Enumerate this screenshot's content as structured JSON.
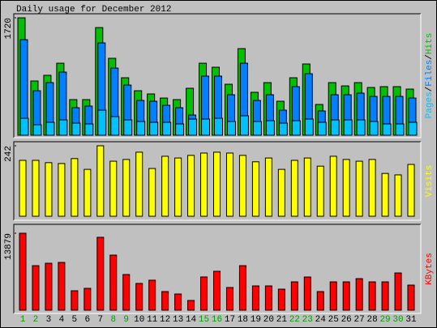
{
  "chart_data": [
    {
      "type": "bar",
      "title": "Daily usage for December 2012",
      "ylim": [
        0,
        1720
      ],
      "yticks": [
        1720
      ],
      "legend_separator": "/",
      "series": [
        {
          "name": "Hits",
          "color": "#00c000",
          "values": [
            1720,
            795,
            878,
            1055,
            522,
            522,
            1577,
            1127,
            842,
            652,
            605,
            545,
            522,
            688,
            1055,
            996,
            747,
            1269,
            629,
            771,
            498,
            842,
            1044,
            451,
            771,
            723,
            771,
            700,
            712,
            712,
            676
          ]
        },
        {
          "name": "Files",
          "color": "#0080ff",
          "values": [
            1400,
            652,
            771,
            925,
            403,
            427,
            1352,
            984,
            735,
            510,
            498,
            439,
            403,
            296,
            866,
            866,
            593,
            1055,
            510,
            593,
            368,
            712,
            901,
            356,
            593,
            593,
            617,
            569,
            569,
            569,
            545
          ]
        },
        {
          "name": "Pages",
          "color": "#00c0ff",
          "values": [
            249,
            154,
            190,
            225,
            178,
            166,
            368,
            273,
            225,
            202,
            190,
            190,
            166,
            237,
            237,
            249,
            202,
            285,
            202,
            213,
            178,
            213,
            237,
            190,
            225,
            225,
            225,
            202,
            166,
            166,
            190
          ]
        }
      ]
    },
    {
      "type": "bar",
      "ylim": [
        0,
        242
      ],
      "yticks": [
        242
      ],
      "series": [
        {
          "name": "Visits",
          "color": "#ffff00",
          "values": [
            192,
            192,
            184,
            181,
            198,
            161,
            242,
            189,
            195,
            220,
            164,
            206,
            200,
            209,
            217,
            220,
            217,
            209,
            187,
            200,
            161,
            192,
            200,
            172,
            206,
            195,
            189,
            195,
            147,
            142,
            178
          ]
        }
      ]
    },
    {
      "type": "bar",
      "ylim": [
        0,
        13879
      ],
      "yticks": [
        13879
      ],
      "categories": [
        "1",
        "2",
        "3",
        "4",
        "5",
        "6",
        "7",
        "8",
        "9",
        "10",
        "11",
        "12",
        "13",
        "14",
        "15",
        "16",
        "17",
        "18",
        "19",
        "20",
        "21",
        "22",
        "23",
        "24",
        "25",
        "26",
        "27",
        "28",
        "29",
        "30",
        "31"
      ],
      "category_colors": [
        "#00a000",
        "#00a000",
        "#000000",
        "#000000",
        "#000000",
        "#000000",
        "#000000",
        "#00a000",
        "#00a000",
        "#000000",
        "#000000",
        "#000000",
        "#000000",
        "#000000",
        "#00a000",
        "#00a000",
        "#000000",
        "#000000",
        "#000000",
        "#000000",
        "#000000",
        "#00a000",
        "#00a000",
        "#000000",
        "#000000",
        "#000000",
        "#000000",
        "#000000",
        "#00a000",
        "#00a000",
        "#000000"
      ],
      "series": [
        {
          "name": "KBytes",
          "color": "#ff0000",
          "values": [
            13879,
            8030,
            8468,
            8614,
            3504,
            3942,
            13149,
            9936,
            6432,
            4826,
            5410,
            3358,
            2920,
            1752,
            5994,
            7016,
            4088,
            8030,
            4380,
            4380,
            3796,
            5110,
            5986,
            3358,
            5110,
            5110,
            5694,
            5110,
            5110,
            6716,
            4526
          ]
        }
      ]
    }
  ]
}
